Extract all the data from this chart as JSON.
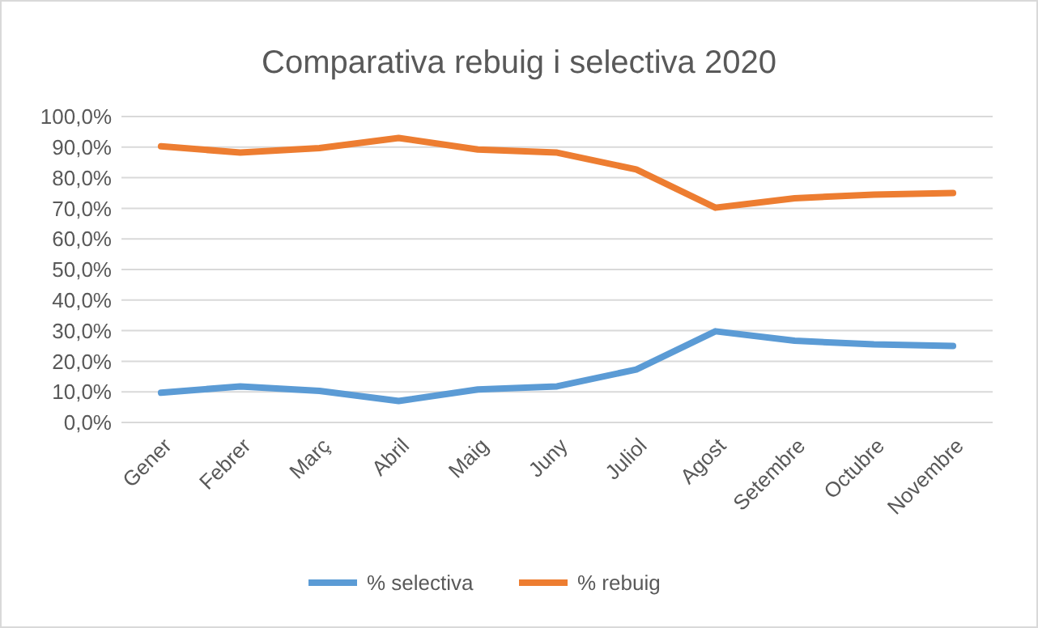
{
  "chart_data": {
    "type": "line",
    "title": "Comparativa rebuig i selectiva 2020",
    "categories": [
      "Gener",
      "Febrer",
      "Març",
      "Abril",
      "Maig",
      "Juny",
      "Juliol",
      "Agost",
      "Setembre",
      "Octubre",
      "Novembre"
    ],
    "series": [
      {
        "name": "% selectiva",
        "color": "#5b9bd5",
        "values": [
          9.7,
          11.8,
          10.3,
          7.0,
          10.8,
          11.8,
          17.3,
          29.8,
          26.7,
          25.5,
          25.0
        ]
      },
      {
        "name": "% rebuig",
        "color": "#ed7d31",
        "values": [
          90.3,
          88.2,
          89.7,
          93.0,
          89.2,
          88.2,
          82.7,
          70.2,
          73.3,
          74.5,
          75.0
        ]
      }
    ],
    "ylim": [
      0,
      100
    ],
    "yticks": [
      {
        "value": 0,
        "label": "0,0%"
      },
      {
        "value": 10,
        "label": "10,0%"
      },
      {
        "value": 20,
        "label": "20,0%"
      },
      {
        "value": 30,
        "label": "30,0%"
      },
      {
        "value": 40,
        "label": "40,0%"
      },
      {
        "value": 50,
        "label": "50,0%"
      },
      {
        "value": 60,
        "label": "60,0%"
      },
      {
        "value": 70,
        "label": "70,0%"
      },
      {
        "value": 80,
        "label": "80,0%"
      },
      {
        "value": 90,
        "label": "90,0%"
      },
      {
        "value": 100,
        "label": "100,0%"
      }
    ],
    "grid": "y",
    "legend": "bottom",
    "marker": "none",
    "line_style": "solid"
  }
}
